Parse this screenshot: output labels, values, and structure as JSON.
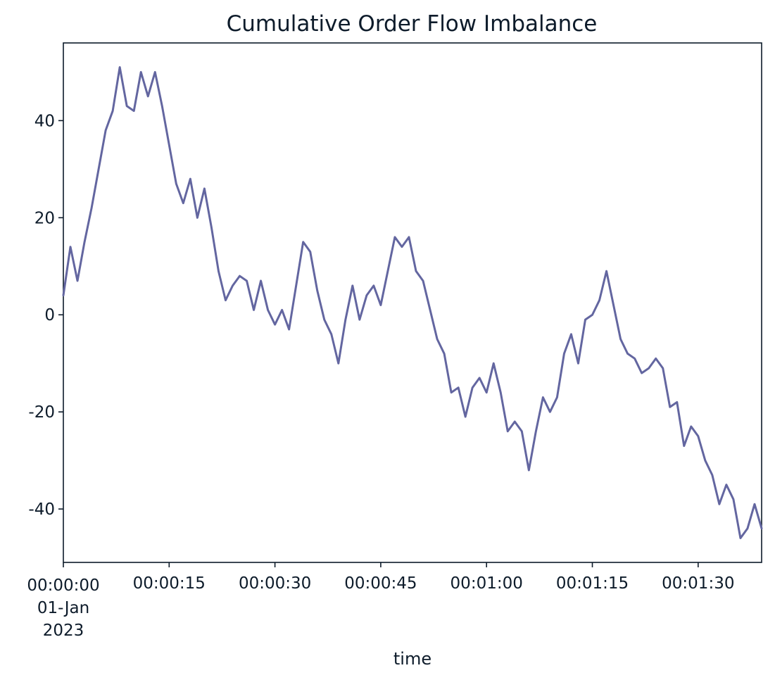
{
  "chart_data": {
    "type": "line",
    "title": "Cumulative Order Flow Imbalance",
    "xlabel": "time",
    "ylabel": "",
    "xlim": [
      0,
      99
    ],
    "ylim": [
      -51,
      56
    ],
    "grid": false,
    "legend": "none",
    "colors": {
      "line": "#6366a0",
      "axes": "#0d1b2a",
      "background": "#ffffff"
    },
    "y_ticks": [
      {
        "value": -40,
        "label": "-40"
      },
      {
        "value": -20,
        "label": "-20"
      },
      {
        "value": 0,
        "label": "0"
      },
      {
        "value": 20,
        "label": "20"
      },
      {
        "value": 40,
        "label": "40"
      }
    ],
    "x_ticks": [
      {
        "value": 0,
        "lines": [
          "00:00:00",
          "01-Jan",
          "2023"
        ]
      },
      {
        "value": 15,
        "lines": [
          "00:00:15"
        ]
      },
      {
        "value": 30,
        "lines": [
          "00:00:30"
        ]
      },
      {
        "value": 45,
        "lines": [
          "00:00:45"
        ]
      },
      {
        "value": 60,
        "lines": [
          "00:01:00"
        ]
      },
      {
        "value": 75,
        "lines": [
          "00:01:15"
        ]
      },
      {
        "value": 90,
        "lines": [
          "00:01:30"
        ]
      }
    ],
    "series": [
      {
        "x": [
          0,
          1,
          2,
          3,
          4,
          5,
          6,
          7,
          8,
          9,
          10,
          11,
          12,
          13,
          14,
          15,
          16,
          17,
          18,
          19,
          20,
          21,
          22,
          23,
          24,
          25,
          26,
          27,
          28,
          29,
          30,
          31,
          32,
          33,
          34,
          35,
          36,
          37,
          38,
          39,
          40,
          41,
          42,
          43,
          44,
          45,
          46,
          47,
          48,
          49,
          50,
          51,
          52,
          53,
          54,
          55,
          56,
          57,
          58,
          59,
          60,
          61,
          62,
          63,
          64,
          65,
          66,
          67,
          68,
          69,
          70,
          71,
          72,
          73,
          74,
          75,
          76,
          77,
          78,
          79,
          80,
          81,
          82,
          83,
          84,
          85,
          86,
          87,
          88,
          89,
          90,
          91,
          92,
          93,
          94,
          95,
          96,
          97,
          98,
          99
        ],
        "y": [
          4,
          14,
          7,
          15,
          22,
          30,
          38,
          42,
          51,
          43,
          42,
          50,
          45,
          50,
          43,
          35,
          27,
          23,
          28,
          20,
          26,
          18,
          9,
          3,
          6,
          8,
          7,
          1,
          7,
          1,
          -2,
          1,
          -3,
          6,
          15,
          13,
          5,
          -1,
          -4,
          -10,
          -1,
          6,
          -1,
          4,
          6,
          2,
          9,
          16,
          14,
          16,
          9,
          7,
          1,
          -5,
          -8,
          -16,
          -15,
          -21,
          -15,
          -13,
          -16,
          -10,
          -16,
          -24,
          -22,
          -24,
          -32,
          -24,
          -17,
          -20,
          -17,
          -8,
          -4,
          -10,
          -1,
          0,
          3,
          9,
          2,
          -5,
          -8,
          -9,
          -12,
          -11,
          -9,
          -11,
          -19,
          -18,
          -27,
          -23,
          -25,
          -30,
          -33,
          -39,
          -35,
          -38,
          -46,
          -44,
          -39,
          -44
        ]
      }
    ]
  }
}
